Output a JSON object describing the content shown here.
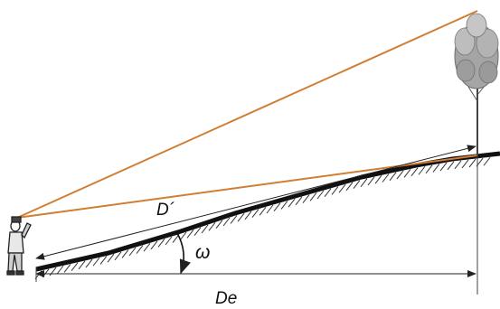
{
  "labels": {
    "d_prime": "D´",
    "omega": "ω",
    "de": "De"
  },
  "colors": {
    "sight_lines": "#d07e33",
    "ground": "#111111",
    "measure_lines": "#222222",
    "tree_foliage": "#9a9a9a"
  },
  "icons": [
    "observer-figure",
    "tree"
  ]
}
